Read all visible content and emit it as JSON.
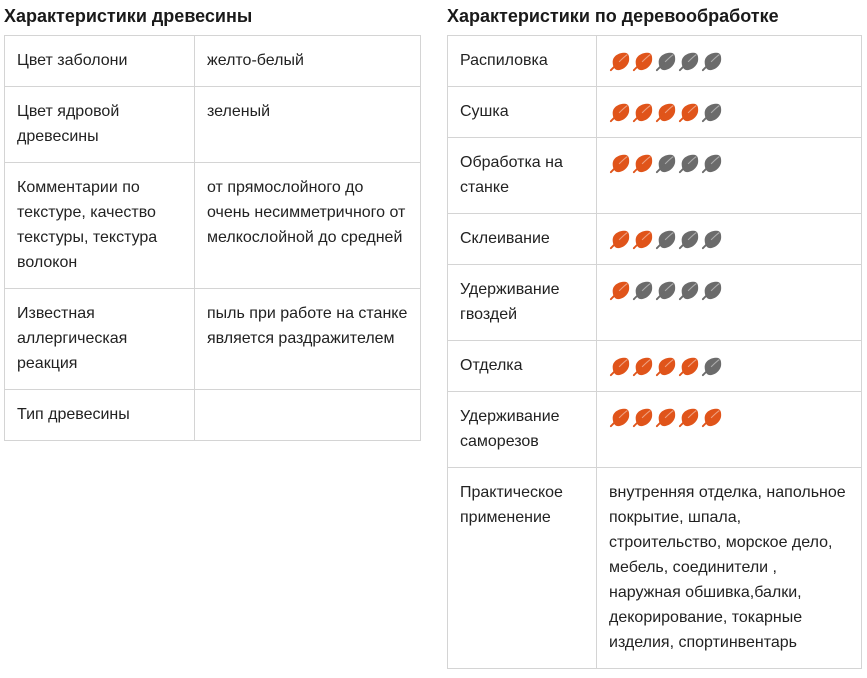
{
  "colors": {
    "leaf_on": "#e0541a",
    "leaf_off": "#6b6b6b",
    "border": "#d4d4d4"
  },
  "wood_props": {
    "title": "Характеристики древесины",
    "rows": [
      {
        "label": "Цвет заболони",
        "value": "желто-белый"
      },
      {
        "label": "Цвет ядровой древесины",
        "value": "зеленый"
      },
      {
        "label": "Комментарии по текстуре, качество текстуры, текстура волокон",
        "value": "от прямослойного до очень несимметричного от мелкослойной до средней"
      },
      {
        "label": "Известная аллергическая реакция",
        "value": "пыль при работе на станке является раздражителем"
      },
      {
        "label": "Тип древесины",
        "value": ""
      }
    ]
  },
  "workability": {
    "title": "Характеристики по деревообработке",
    "rows": [
      {
        "label": "Распиловка",
        "rating": 2,
        "max": 5,
        "icon": "leaf-icon"
      },
      {
        "label": "Сушка",
        "rating": 4,
        "max": 5,
        "icon": "leaf-icon"
      },
      {
        "label": "Обработка на станке",
        "rating": 2,
        "max": 5,
        "icon": "leaf-icon"
      },
      {
        "label": "Склеивание",
        "rating": 2,
        "max": 5,
        "icon": "leaf-icon"
      },
      {
        "label": "Удерживание гвоздей",
        "rating": 1,
        "max": 5,
        "icon": "leaf-icon"
      },
      {
        "label": "Отделка",
        "rating": 4,
        "max": 5,
        "icon": "leaf-icon"
      },
      {
        "label": "Удерживание саморезов",
        "rating": 5,
        "max": 5,
        "icon": "leaf-icon"
      }
    ],
    "usage": {
      "label": "Практическое применение",
      "value": "внутренняя отделка, напольное покрытие, шпала, строительство, морское дело, мебель, соединители , наружная обшивка,балки, декорирование, токарные изделия, спортинвентарь"
    }
  }
}
